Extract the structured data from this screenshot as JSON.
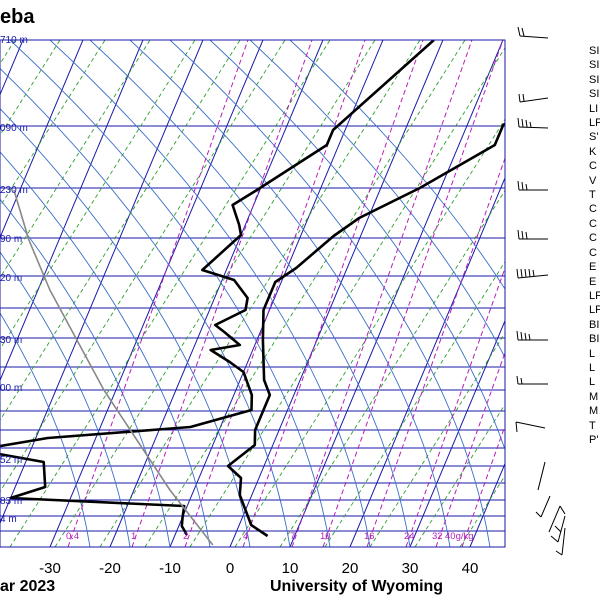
{
  "title_fragment": "eba",
  "footer": {
    "date_fragment": "ar 2023",
    "organization": "University of Wyoming"
  },
  "chart_data": {
    "type": "line",
    "title": "",
    "xlabel": "",
    "ylabel": "",
    "x_ticks": [
      "-30",
      "-20",
      "-10",
      "0",
      "10",
      "20",
      "30",
      "40"
    ],
    "height_labels": [
      {
        "label": "710 m"
      },
      {
        "label": "090 m"
      },
      {
        "label": "230 m"
      },
      {
        "label": "90 m"
      },
      {
        "label": "20 m"
      },
      {
        "label": "30 m"
      },
      {
        "label": "00 m"
      },
      {
        "label": "52 m"
      },
      {
        "label": "83 m"
      },
      {
        "label": "4 m"
      }
    ],
    "mixing_ratio_labels": [
      "0.4",
      "1",
      "2",
      "4",
      "7",
      "10",
      "16",
      "24",
      "32",
      "40g/kg"
    ],
    "series": [
      {
        "name": "",
        "color": "#000000",
        "points": [
          [
            -1.5,
            40
          ],
          [
            -12,
            130
          ],
          [
            -12,
            145
          ],
          [
            -20.5,
            190
          ],
          [
            -23.5,
            205
          ],
          [
            -21,
            225
          ],
          [
            -20,
            235
          ],
          [
            -24,
            270
          ],
          [
            -18,
            280
          ],
          [
            -14.5,
            298
          ],
          [
            -14,
            310
          ],
          [
            -18,
            325
          ],
          [
            -16,
            332
          ],
          [
            -12.5,
            345
          ],
          [
            -17,
            350
          ],
          [
            -13,
            362
          ],
          [
            -10,
            372
          ],
          [
            -7,
            395
          ],
          [
            -6,
            410
          ],
          [
            -15,
            427
          ],
          [
            -38,
            438
          ],
          [
            -49,
            450
          ],
          [
            -37,
            462
          ],
          [
            -35,
            487
          ],
          [
            -40,
            498
          ],
          [
            -10.5,
            506
          ],
          [
            -10,
            517
          ],
          [
            -9.5,
            526
          ],
          [
            -8,
            535
          ]
        ]
      },
      {
        "name": "",
        "color": "#000000",
        "points": [
          [
            31,
            40
          ],
          [
            16,
            125
          ],
          [
            16,
            145
          ],
          [
            6.5,
            188
          ],
          [
            -1.5,
            218
          ],
          [
            -4.5,
            236
          ],
          [
            -8.5,
            268
          ],
          [
            -11,
            282
          ],
          [
            -11,
            310
          ],
          [
            -9,
            340
          ],
          [
            -7.5,
            360
          ],
          [
            -6,
            380
          ],
          [
            -4,
            395
          ],
          [
            -4,
            430
          ],
          [
            -3,
            445
          ],
          [
            -6,
            466
          ],
          [
            -3,
            478
          ],
          [
            -2,
            495
          ],
          [
            2,
            525
          ],
          [
            5.5,
            536
          ]
        ]
      },
      {
        "name": "",
        "color": "#888888",
        "points": [
          [
            -61,
            190
          ],
          [
            -55,
            240
          ],
          [
            -48,
            290
          ],
          [
            -40,
            340
          ],
          [
            -32,
            390
          ],
          [
            -23,
            440
          ],
          [
            -14,
            490
          ],
          [
            -7,
            525
          ],
          [
            -3,
            545
          ]
        ]
      }
    ]
  },
  "stability_indices_fragments": [
    "SI",
    "SI",
    "SI",
    "SI",
    "LI",
    "LF",
    "S'",
    "K",
    "C",
    "V",
    "T",
    "C",
    "C",
    "C",
    "C",
    "E",
    "E",
    "LF",
    "LF",
    "BI",
    "BI",
    "L",
    "L",
    "L",
    "M",
    "M",
    "T",
    "P'"
  ],
  "colors": {
    "temperature": "#000000",
    "dewpoint": "#000000",
    "isobar": "#1a1aa8",
    "isotherm": "#1a1aa8",
    "dry_adiabat": "#2f9e2f",
    "moist_adiabat": "#3a6fc8",
    "mixing_ratio": "#b81fb8",
    "parcel": "#888888"
  }
}
